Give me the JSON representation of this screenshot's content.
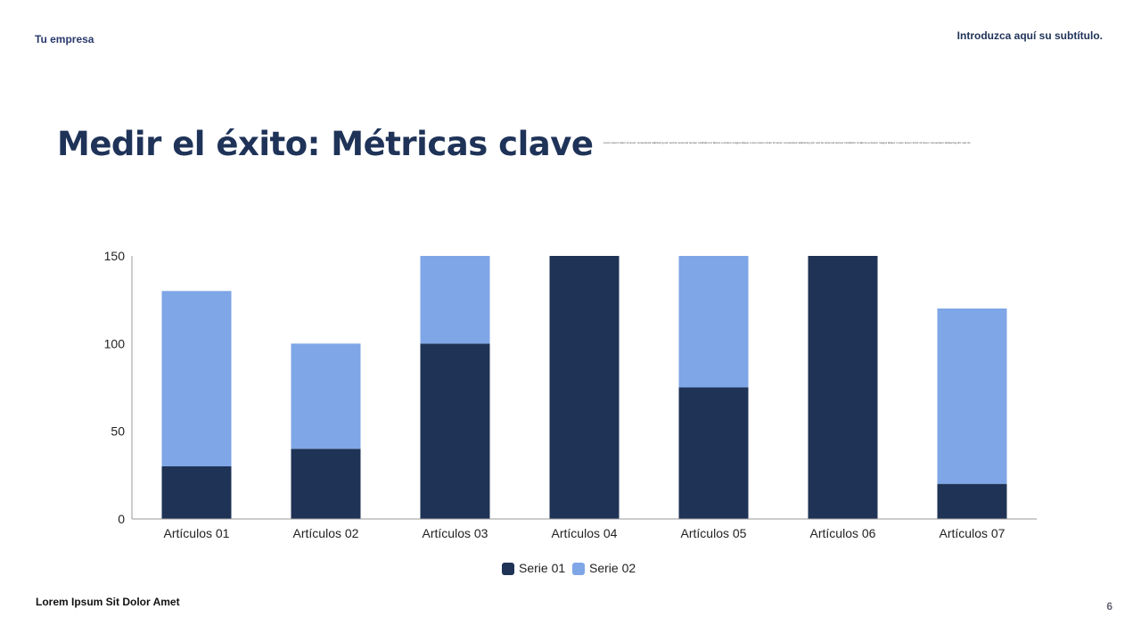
{
  "header": {
    "company": "Tu empresa",
    "subtitle": "Introduzca aquí su subtítulo."
  },
  "title": "Medir el éxito: Métricas clave",
  "body_text": "Lorem ipsum dolor sit amet, consectetur adipiscing elit, sed do eiusmod tempor incididunt ut labore et dolore magna aliqua. Lorem ipsum dolor sit amet, consectetur adipiscing elit, sed do eiusmod tempor incididunt ut labore et dolore magna aliqua. Lorem ipsum dolor sit amet, consectetur adipiscing elit, sed do",
  "footer": {
    "text": "Lorem Ipsum Sit Dolor Amet",
    "page": "6"
  },
  "chart_data": {
    "type": "bar",
    "stacked": true,
    "categories": [
      "Artículos 01",
      "Artículos 02",
      "Artículos 03",
      "Artículos 04",
      "Artículos 05",
      "Artículos 06",
      "Artículos 07"
    ],
    "series": [
      {
        "name": "Serie 01",
        "color": "#1f3356",
        "values": [
          30,
          40,
          100,
          150,
          75,
          150,
          20
        ]
      },
      {
        "name": "Serie 02",
        "color": "#7fa6e6",
        "values": [
          100,
          60,
          50,
          0,
          75,
          0,
          100
        ]
      }
    ],
    "ylim": [
      0,
      150
    ],
    "yticks": [
      0,
      50,
      100,
      150
    ],
    "grid": false,
    "legend": "bottom"
  }
}
